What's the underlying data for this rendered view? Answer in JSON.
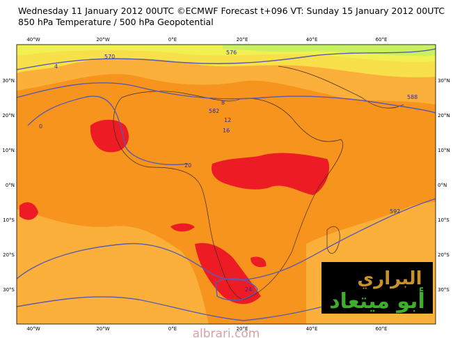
{
  "header": {
    "line1": "Wednesday 11 January 2012 00UTC ©ECMWF Forecast t+096 VT: Sunday 15 January 2012 00UTC",
    "line2": "850 hPa Temperature / 500 hPa Geopotential"
  },
  "longitude_labels": [
    "40°W",
    "20°W",
    "0°E",
    "20°E",
    "40°E",
    "60°E"
  ],
  "latitude_labels": [
    "30°N",
    "20°N",
    "10°N",
    "0°N",
    "10°S",
    "20°S",
    "30°S"
  ],
  "contour_labels": [
    "570",
    "582",
    "576",
    "588",
    "4",
    "8",
    "12",
    "16",
    "20",
    "24",
    "0",
    "592"
  ],
  "logo": {
    "line1": "البراري",
    "line2": "أبو ميتعاد"
  },
  "watermark": "albrari.com"
}
